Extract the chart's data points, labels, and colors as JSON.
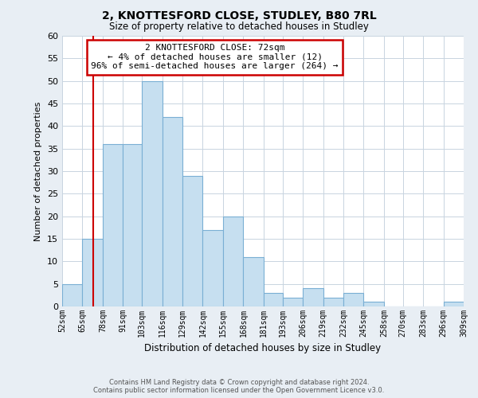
{
  "title": "2, KNOTTESFORD CLOSE, STUDLEY, B80 7RL",
  "subtitle": "Size of property relative to detached houses in Studley",
  "xlabel": "Distribution of detached houses by size in Studley",
  "ylabel": "Number of detached properties",
  "bin_labels": [
    "52sqm",
    "65sqm",
    "78sqm",
    "91sqm",
    "103sqm",
    "116sqm",
    "129sqm",
    "142sqm",
    "155sqm",
    "168sqm",
    "181sqm",
    "193sqm",
    "206sqm",
    "219sqm",
    "232sqm",
    "245sqm",
    "258sqm",
    "270sqm",
    "283sqm",
    "296sqm",
    "309sqm"
  ],
  "bin_edges": [
    52,
    65,
    78,
    91,
    103,
    116,
    129,
    142,
    155,
    168,
    181,
    193,
    206,
    219,
    232,
    245,
    258,
    270,
    283,
    296,
    309
  ],
  "bar_heights": [
    5,
    15,
    36,
    36,
    50,
    42,
    29,
    17,
    20,
    11,
    3,
    2,
    4,
    2,
    3,
    1,
    0,
    0,
    0,
    1
  ],
  "bar_color": "#c6dff0",
  "bar_edge_color": "#7aafd4",
  "red_line_x": 72,
  "annotation_title": "2 KNOTTESFORD CLOSE: 72sqm",
  "annotation_line1": "← 4% of detached houses are smaller (12)",
  "annotation_line2": "96% of semi-detached houses are larger (264) →",
  "annotation_box_color": "#ffffff",
  "annotation_box_edge": "#cc0000",
  "red_line_color": "#cc0000",
  "ylim": [
    0,
    60
  ],
  "yticks": [
    0,
    5,
    10,
    15,
    20,
    25,
    30,
    35,
    40,
    45,
    50,
    55,
    60
  ],
  "footer_line1": "Contains HM Land Registry data © Crown copyright and database right 2024.",
  "footer_line2": "Contains public sector information licensed under the Open Government Licence v3.0.",
  "bg_color": "#e8eef4",
  "plot_bg_color": "#ffffff",
  "grid_color": "#c8d4e0"
}
